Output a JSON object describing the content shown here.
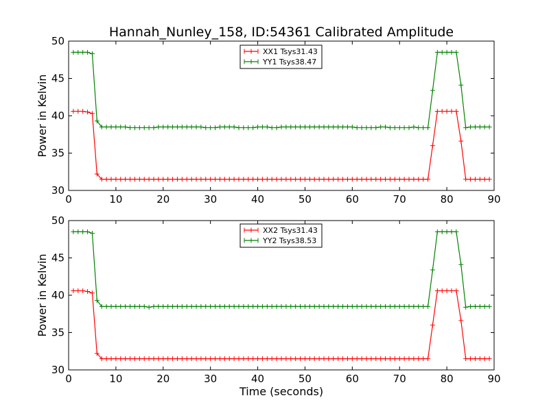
{
  "title": "Hannah_Nunley_158, ID:54361 Calibrated Amplitude",
  "chart_data": [
    {
      "type": "line",
      "title": "Hannah_Nunley_158, ID:54361 Calibrated Amplitude",
      "xlabel": "",
      "ylabel": "Power in Kelvin",
      "xlim": [
        0,
        90
      ],
      "ylim": [
        30,
        50
      ],
      "xticks": [
        "0",
        "10",
        "20",
        "30",
        "40",
        "50",
        "60",
        "70",
        "80",
        "90"
      ],
      "yticks": [
        "30",
        "35",
        "40",
        "45",
        "50"
      ],
      "grid": false,
      "legend": "top-center",
      "x": [
        1,
        2,
        3,
        4,
        5,
        6,
        7,
        8,
        9,
        10,
        11,
        12,
        13,
        14,
        15,
        16,
        17,
        18,
        19,
        20,
        21,
        22,
        23,
        24,
        25,
        26,
        27,
        28,
        29,
        30,
        31,
        32,
        33,
        34,
        35,
        36,
        37,
        38,
        39,
        40,
        41,
        42,
        43,
        44,
        45,
        46,
        47,
        48,
        49,
        50,
        51,
        52,
        53,
        54,
        55,
        56,
        57,
        58,
        59,
        60,
        61,
        62,
        63,
        64,
        65,
        66,
        67,
        68,
        69,
        70,
        71,
        72,
        73,
        74,
        75,
        76,
        77,
        78,
        79,
        80,
        81,
        82,
        83,
        84,
        85,
        86,
        87,
        88,
        89
      ],
      "series": [
        {
          "name": "XX1 Tsys31.43",
          "color": "#ff0000",
          "values": [
            40.6,
            40.6,
            40.6,
            40.5,
            40.3,
            32.2,
            31.5,
            31.5,
            31.5,
            31.5,
            31.5,
            31.5,
            31.5,
            31.5,
            31.5,
            31.5,
            31.5,
            31.5,
            31.5,
            31.5,
            31.5,
            31.5,
            31.5,
            31.5,
            31.5,
            31.5,
            31.5,
            31.5,
            31.5,
            31.5,
            31.5,
            31.5,
            31.5,
            31.5,
            31.5,
            31.5,
            31.5,
            31.5,
            31.5,
            31.5,
            31.5,
            31.5,
            31.5,
            31.5,
            31.5,
            31.5,
            31.5,
            31.5,
            31.5,
            31.5,
            31.5,
            31.5,
            31.5,
            31.5,
            31.5,
            31.5,
            31.5,
            31.5,
            31.5,
            31.5,
            31.5,
            31.5,
            31.5,
            31.5,
            31.5,
            31.5,
            31.5,
            31.5,
            31.5,
            31.5,
            31.5,
            31.5,
            31.5,
            31.5,
            31.5,
            31.5,
            36.0,
            40.6,
            40.6,
            40.6,
            40.6,
            40.6,
            36.6,
            31.5,
            31.5,
            31.5,
            31.5,
            31.5,
            31.5
          ]
        },
        {
          "name": "YY1 Tsys38.47",
          "color": "#008000",
          "values": [
            48.5,
            48.5,
            48.5,
            48.5,
            48.3,
            39.3,
            38.5,
            38.5,
            38.5,
            38.5,
            38.5,
            38.5,
            38.4,
            38.4,
            38.4,
            38.4,
            38.4,
            38.4,
            38.5,
            38.5,
            38.5,
            38.5,
            38.5,
            38.5,
            38.5,
            38.5,
            38.5,
            38.5,
            38.4,
            38.4,
            38.4,
            38.5,
            38.5,
            38.5,
            38.5,
            38.4,
            38.4,
            38.4,
            38.4,
            38.5,
            38.5,
            38.5,
            38.4,
            38.4,
            38.5,
            38.5,
            38.5,
            38.5,
            38.5,
            38.5,
            38.5,
            38.5,
            38.5,
            38.5,
            38.5,
            38.5,
            38.5,
            38.5,
            38.5,
            38.5,
            38.4,
            38.4,
            38.4,
            38.4,
            38.4,
            38.5,
            38.5,
            38.4,
            38.4,
            38.4,
            38.4,
            38.4,
            38.5,
            38.4,
            38.4,
            38.4,
            43.4,
            48.5,
            48.5,
            48.5,
            48.5,
            48.5,
            44.1,
            38.4,
            38.5,
            38.5,
            38.5,
            38.5,
            38.5
          ]
        }
      ]
    },
    {
      "type": "line",
      "title": "",
      "xlabel": "Time (seconds)",
      "ylabel": "Power in Kelvin",
      "xlim": [
        0,
        90
      ],
      "ylim": [
        30,
        50
      ],
      "xticks": [
        "0",
        "10",
        "20",
        "30",
        "40",
        "50",
        "60",
        "70",
        "80",
        "90"
      ],
      "yticks": [
        "30",
        "35",
        "40",
        "45",
        "50"
      ],
      "grid": false,
      "legend": "top-center",
      "x": [
        1,
        2,
        3,
        4,
        5,
        6,
        7,
        8,
        9,
        10,
        11,
        12,
        13,
        14,
        15,
        16,
        17,
        18,
        19,
        20,
        21,
        22,
        23,
        24,
        25,
        26,
        27,
        28,
        29,
        30,
        31,
        32,
        33,
        34,
        35,
        36,
        37,
        38,
        39,
        40,
        41,
        42,
        43,
        44,
        45,
        46,
        47,
        48,
        49,
        50,
        51,
        52,
        53,
        54,
        55,
        56,
        57,
        58,
        59,
        60,
        61,
        62,
        63,
        64,
        65,
        66,
        67,
        68,
        69,
        70,
        71,
        72,
        73,
        74,
        75,
        76,
        77,
        78,
        79,
        80,
        81,
        82,
        83,
        84,
        85,
        86,
        87,
        88,
        89
      ],
      "series": [
        {
          "name": "XX2 Tsys31.43",
          "color": "#ff0000",
          "values": [
            40.6,
            40.6,
            40.6,
            40.5,
            40.3,
            32.2,
            31.5,
            31.5,
            31.5,
            31.5,
            31.5,
            31.5,
            31.5,
            31.5,
            31.5,
            31.5,
            31.5,
            31.5,
            31.5,
            31.5,
            31.5,
            31.5,
            31.5,
            31.5,
            31.5,
            31.5,
            31.5,
            31.5,
            31.5,
            31.5,
            31.5,
            31.5,
            31.5,
            31.5,
            31.5,
            31.5,
            31.5,
            31.5,
            31.5,
            31.5,
            31.5,
            31.5,
            31.5,
            31.5,
            31.5,
            31.5,
            31.5,
            31.5,
            31.5,
            31.5,
            31.5,
            31.5,
            31.5,
            31.5,
            31.5,
            31.5,
            31.5,
            31.5,
            31.5,
            31.5,
            31.5,
            31.5,
            31.5,
            31.5,
            31.5,
            31.5,
            31.5,
            31.5,
            31.5,
            31.5,
            31.5,
            31.5,
            31.5,
            31.5,
            31.5,
            31.5,
            36.0,
            40.6,
            40.6,
            40.6,
            40.6,
            40.6,
            36.6,
            31.5,
            31.5,
            31.5,
            31.5,
            31.5,
            31.5
          ]
        },
        {
          "name": "YY2 Tsys38.53",
          "color": "#008000",
          "values": [
            48.5,
            48.5,
            48.5,
            48.5,
            48.3,
            39.3,
            38.5,
            38.5,
            38.5,
            38.5,
            38.5,
            38.5,
            38.5,
            38.5,
            38.5,
            38.5,
            38.4,
            38.5,
            38.5,
            38.5,
            38.5,
            38.5,
            38.5,
            38.5,
            38.5,
            38.5,
            38.5,
            38.5,
            38.5,
            38.5,
            38.5,
            38.5,
            38.5,
            38.5,
            38.5,
            38.5,
            38.5,
            38.5,
            38.5,
            38.5,
            38.5,
            38.5,
            38.5,
            38.5,
            38.5,
            38.5,
            38.5,
            38.5,
            38.5,
            38.5,
            38.5,
            38.5,
            38.5,
            38.5,
            38.5,
            38.5,
            38.5,
            38.5,
            38.5,
            38.5,
            38.5,
            38.5,
            38.5,
            38.5,
            38.5,
            38.5,
            38.5,
            38.5,
            38.5,
            38.5,
            38.5,
            38.5,
            38.5,
            38.5,
            38.5,
            38.5,
            43.4,
            48.5,
            48.5,
            48.5,
            48.5,
            48.5,
            44.1,
            38.4,
            38.5,
            38.5,
            38.5,
            38.5,
            38.5
          ]
        }
      ]
    }
  ]
}
